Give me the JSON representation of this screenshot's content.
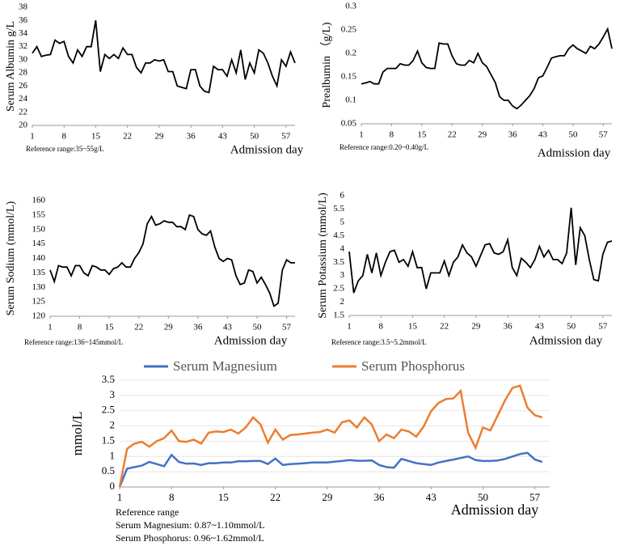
{
  "chart_data": [
    {
      "type": "line",
      "y_label": "Serum Albumin g/L",
      "x_label": "Admission day",
      "annotation": "Reference range:35~55g/L",
      "x": [
        1,
        2,
        3,
        4,
        5,
        6,
        7,
        8,
        9,
        10,
        11,
        12,
        13,
        14,
        15,
        16,
        17,
        18,
        19,
        20,
        21,
        22,
        23,
        24,
        25,
        26,
        27,
        28,
        29,
        30,
        31,
        32,
        33,
        34,
        35,
        36,
        37,
        38,
        39,
        40,
        41,
        42,
        43,
        44,
        45,
        46,
        47,
        48,
        49,
        50,
        51,
        52,
        53,
        54,
        55,
        56,
        57,
        58,
        59
      ],
      "xlim": [
        1,
        59
      ],
      "xticks": [
        1,
        8,
        15,
        22,
        29,
        36,
        43,
        50,
        57
      ],
      "ylim": [
        20,
        38
      ],
      "yticks": [
        20,
        22,
        24,
        26,
        28,
        30,
        32,
        34,
        36,
        38
      ],
      "series": [
        {
          "color": "#000000",
          "values": [
            31,
            32,
            30.5,
            30.7,
            30.8,
            33,
            32.5,
            32.8,
            30.5,
            29.5,
            31.5,
            30.5,
            32,
            32,
            36,
            28.2,
            30.8,
            30.2,
            30.8,
            30.2,
            31.8,
            30.8,
            30.8,
            28.8,
            28,
            29.5,
            29.5,
            30,
            29.8,
            30,
            28.2,
            28.2,
            26,
            25.8,
            25.6,
            28.5,
            28.5,
            26,
            25.2,
            25,
            29,
            28.5,
            28.5,
            27.5,
            30,
            28,
            31.5,
            27,
            29.5,
            28,
            31.5,
            31,
            29.5,
            27.5,
            26,
            30,
            29,
            31.2,
            29.5
          ]
        }
      ]
    },
    {
      "type": "line",
      "y_label": "Prealbumin （g/L)",
      "x_label": "Admission day",
      "annotation": "Reference range:0.20~0.40g/L",
      "x": [
        1,
        2,
        3,
        4,
        5,
        6,
        7,
        8,
        9,
        10,
        11,
        12,
        13,
        14,
        15,
        16,
        17,
        18,
        19,
        20,
        21,
        22,
        23,
        24,
        25,
        26,
        27,
        28,
        29,
        30,
        31,
        32,
        33,
        34,
        35,
        36,
        37,
        38,
        39,
        40,
        41,
        42,
        43,
        44,
        45,
        46,
        47,
        48,
        49,
        50,
        51,
        52,
        53,
        54,
        55,
        56,
        57,
        58,
        59
      ],
      "xlim": [
        1,
        59
      ],
      "xticks": [
        1,
        8,
        15,
        22,
        29,
        36,
        43,
        50,
        57
      ],
      "ylim": [
        0.05,
        0.3
      ],
      "yticks": [
        0.05,
        0.1,
        0.15,
        0.2,
        0.25,
        0.3
      ],
      "series": [
        {
          "color": "#000000",
          "values": [
            0.135,
            0.137,
            0.14,
            0.135,
            0.135,
            0.16,
            0.168,
            0.168,
            0.168,
            0.178,
            0.175,
            0.175,
            0.185,
            0.205,
            0.18,
            0.17,
            0.168,
            0.168,
            0.222,
            0.22,
            0.22,
            0.195,
            0.178,
            0.175,
            0.175,
            0.185,
            0.18,
            0.2,
            0.18,
            0.172,
            0.155,
            0.138,
            0.108,
            0.1,
            0.1,
            0.088,
            0.082,
            0.09,
            0.1,
            0.11,
            0.125,
            0.148,
            0.152,
            0.17,
            0.19,
            0.193,
            0.195,
            0.195,
            0.21,
            0.218,
            0.21,
            0.205,
            0.2,
            0.215,
            0.21,
            0.22,
            0.235,
            0.252,
            0.21
          ]
        }
      ]
    },
    {
      "type": "line",
      "y_label": "Serum Sodium (mmol/L)",
      "x_label": "Admission day",
      "annotation": "Reference range:136~145mmol/L",
      "x": [
        1,
        2,
        3,
        4,
        5,
        6,
        7,
        8,
        9,
        10,
        11,
        12,
        13,
        14,
        15,
        16,
        17,
        18,
        19,
        20,
        21,
        22,
        23,
        24,
        25,
        26,
        27,
        28,
        29,
        30,
        31,
        32,
        33,
        34,
        35,
        36,
        37,
        38,
        39,
        40,
        41,
        42,
        43,
        44,
        45,
        46,
        47,
        48,
        49,
        50,
        51,
        52,
        53,
        54,
        55,
        56,
        57,
        58,
        59
      ],
      "xlim": [
        1,
        59
      ],
      "xticks": [
        1,
        8,
        15,
        22,
        29,
        36,
        43,
        50,
        57
      ],
      "ylim": [
        120,
        160
      ],
      "yticks": [
        120,
        125,
        130,
        135,
        140,
        145,
        150,
        155,
        160
      ],
      "series": [
        {
          "color": "#000000",
          "values": [
            136,
            132,
            137.5,
            137,
            137,
            134,
            137.5,
            137.5,
            135,
            134,
            137.5,
            137,
            136,
            136,
            134.5,
            136.5,
            137,
            138.5,
            137,
            137,
            140,
            142,
            145,
            152,
            154.5,
            151.5,
            152,
            153,
            152.5,
            152.5,
            151,
            151,
            150,
            155,
            154.5,
            150,
            148.5,
            148,
            149.5,
            144,
            140,
            139,
            140,
            139.5,
            134,
            131,
            131.5,
            136,
            135.5,
            131.5,
            133.5,
            131,
            128,
            123.5,
            124.5,
            136,
            139.5,
            138.5,
            138.5
          ]
        }
      ]
    },
    {
      "type": "line",
      "y_label": "Serum Potassium (mmol/L)",
      "x_label": "Admission day",
      "annotation": "Reference range:3.5~5.2mmol/L",
      "x": [
        1,
        2,
        3,
        4,
        5,
        6,
        7,
        8,
        9,
        10,
        11,
        12,
        13,
        14,
        15,
        16,
        17,
        18,
        19,
        20,
        21,
        22,
        23,
        24,
        25,
        26,
        27,
        28,
        29,
        30,
        31,
        32,
        33,
        34,
        35,
        36,
        37,
        38,
        39,
        40,
        41,
        42,
        43,
        44,
        45,
        46,
        47,
        48,
        49,
        50,
        51,
        52,
        53,
        54,
        55,
        56,
        57,
        58,
        59
      ],
      "xlim": [
        1,
        59
      ],
      "xticks": [
        1,
        8,
        15,
        22,
        29,
        36,
        43,
        50,
        57
      ],
      "ylim": [
        1.5,
        6
      ],
      "yticks": [
        1.5,
        2,
        2.5,
        3,
        3.5,
        4,
        4.5,
        5,
        5.5,
        6
      ],
      "series": [
        {
          "color": "#000000",
          "values": [
            3.9,
            2.35,
            2.8,
            3,
            3.8,
            3.1,
            3.85,
            3,
            3.5,
            3.9,
            3.95,
            3.5,
            3.6,
            3.35,
            3.9,
            3.3,
            3.3,
            2.5,
            3.1,
            3.1,
            3.1,
            3.55,
            3,
            3.5,
            3.7,
            4.15,
            3.85,
            3.7,
            3.35,
            3.75,
            4.15,
            4.2,
            3.85,
            3.8,
            3.9,
            4.35,
            3.3,
            3,
            3.65,
            3.5,
            3.3,
            3.6,
            4.1,
            3.7,
            3.95,
            3.6,
            3.6,
            3.45,
            3.85,
            5.55,
            3.4,
            4.8,
            4.5,
            3.6,
            2.85,
            2.8,
            3.8,
            4.25,
            4.3
          ]
        }
      ]
    },
    {
      "type": "line",
      "y_label": "mmol/L",
      "x_label": "Admission day",
      "annotations": [
        "Reference range",
        "Serum Magnesium:  0.87~1.10mmol/L",
        "Serum Phosphorus:  0.96~1.62mmol/L"
      ],
      "x": [
        1,
        2,
        3,
        4,
        5,
        6,
        7,
        8,
        9,
        10,
        11,
        12,
        13,
        14,
        15,
        16,
        17,
        18,
        19,
        20,
        21,
        22,
        23,
        24,
        25,
        26,
        27,
        28,
        29,
        30,
        31,
        32,
        33,
        34,
        35,
        36,
        37,
        38,
        39,
        40,
        41,
        42,
        43,
        44,
        45,
        46,
        47,
        48,
        49,
        50,
        51,
        52,
        53,
        54,
        55,
        56,
        57,
        58
      ],
      "xlim": [
        1,
        59
      ],
      "xticks": [
        1,
        8,
        15,
        22,
        29,
        36,
        43,
        50,
        57
      ],
      "ylim": [
        0,
        3.5
      ],
      "yticks": [
        0,
        0.5,
        1,
        1.5,
        2,
        2.5,
        3,
        3.5
      ],
      "legend": "top",
      "series": [
        {
          "name": "Serum Magnesium",
          "color": "#4472c4",
          "values": [
            0,
            0.6,
            0.65,
            0.7,
            0.82,
            0.75,
            0.68,
            1.05,
            0.82,
            0.76,
            0.77,
            0.72,
            0.78,
            0.78,
            0.8,
            0.8,
            0.84,
            0.84,
            0.85,
            0.85,
            0.75,
            0.93,
            0.72,
            0.75,
            0.76,
            0.78,
            0.8,
            0.8,
            0.8,
            0.83,
            0.85,
            0.88,
            0.86,
            0.86,
            0.87,
            0.72,
            0.65,
            0.63,
            0.92,
            0.85,
            0.78,
            0.75,
            0.72,
            0.8,
            0.85,
            0.9,
            0.95,
            1.0,
            0.88,
            0.85,
            0.85,
            0.87,
            0.92,
            1.0,
            1.08,
            1.12,
            0.9,
            0.82
          ]
        },
        {
          "name": "Serum Phosphorus",
          "color": "#ed7d31",
          "values": [
            0,
            1.25,
            1.42,
            1.48,
            1.32,
            1.5,
            1.6,
            1.85,
            1.5,
            1.48,
            1.55,
            1.42,
            1.78,
            1.82,
            1.8,
            1.88,
            1.75,
            1.95,
            2.28,
            2.05,
            1.45,
            1.88,
            1.55,
            1.7,
            1.72,
            1.75,
            1.78,
            1.8,
            1.88,
            1.78,
            2.12,
            2.18,
            1.95,
            2.28,
            2.05,
            1.5,
            1.72,
            1.6,
            1.88,
            1.82,
            1.65,
            1.98,
            2.48,
            2.75,
            2.88,
            2.9,
            3.15,
            1.78,
            1.28,
            1.95,
            1.85,
            2.35,
            2.85,
            3.25,
            3.32,
            2.6,
            2.35,
            2.28
          ]
        }
      ]
    }
  ]
}
